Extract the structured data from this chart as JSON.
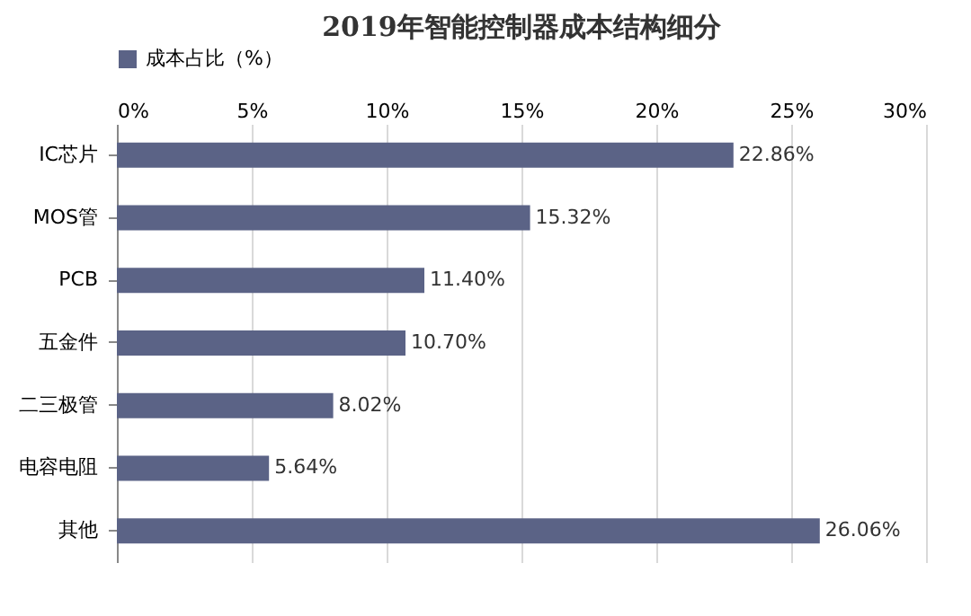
{
  "chart_data": {
    "type": "bar",
    "orientation": "horizontal",
    "title": "2019年智能控制器成本结构细分",
    "categories": [
      "IC芯片",
      "MOS管",
      "PCB",
      "五金件",
      "二三极管",
      "电容电阻",
      "其他"
    ],
    "series": [
      {
        "name": "成本占比（%）",
        "color": "#5b6386",
        "values": [
          22.86,
          15.32,
          11.4,
          10.7,
          8.02,
          5.64,
          26.06
        ],
        "value_labels": [
          "22.86%",
          "15.32%",
          "11.40%",
          "10.70%",
          "8.02%",
          "5.64%",
          "26.06%"
        ]
      }
    ],
    "xlim": [
      0,
      30
    ],
    "xticks": [
      {
        "value": 0,
        "label": "0%"
      },
      {
        "value": 5,
        "label": "5%"
      },
      {
        "value": 10,
        "label": "10%"
      },
      {
        "value": 15,
        "label": "15%"
      },
      {
        "value": 20,
        "label": "20%"
      },
      {
        "value": 25,
        "label": "25%"
      },
      {
        "value": 30,
        "label": "30%"
      }
    ],
    "grid": "x",
    "legend": "top"
  }
}
